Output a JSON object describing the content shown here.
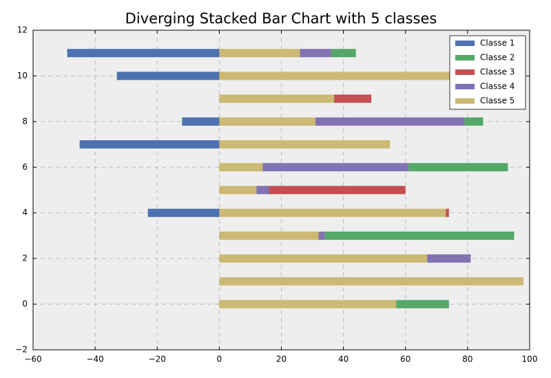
{
  "chart_data": {
    "type": "bar",
    "orientation": "horizontal",
    "stacked": true,
    "title": "Diverging Stacked Bar Chart with 5 classes",
    "categories": [
      0,
      1,
      2,
      3,
      4,
      5,
      6,
      7,
      8,
      9,
      10,
      11
    ],
    "series": [
      {
        "name": "Classe 1",
        "color": "#4c72b0",
        "values": [
          0,
          0,
          0,
          0,
          -23,
          0,
          0,
          -45,
          -12,
          0,
          -33,
          -49
        ]
      },
      {
        "name": "Classe 2",
        "color": "#55a868",
        "values": [
          17,
          0,
          0,
          61,
          0,
          0,
          32,
          0,
          6,
          0,
          0,
          8
        ]
      },
      {
        "name": "Classe 3",
        "color": "#c44e52",
        "values": [
          0,
          0,
          0,
          0,
          1,
          44,
          0,
          0,
          0,
          12,
          0,
          0
        ]
      },
      {
        "name": "Classe 4",
        "color": "#8172b2",
        "values": [
          0,
          0,
          14,
          2,
          0,
          4,
          47,
          0,
          48,
          0,
          0,
          10
        ]
      },
      {
        "name": "Classe 5",
        "color": "#ccb974",
        "values": [
          57,
          98,
          67,
          32,
          73,
          12,
          14,
          55,
          31,
          37,
          80,
          26
        ]
      }
    ],
    "xlim": [
      -60,
      100
    ],
    "xticks": [
      {
        "value": -60,
        "label": "−60"
      },
      {
        "value": -40,
        "label": "−40"
      },
      {
        "value": -20,
        "label": "−20"
      },
      0,
      20,
      40,
      60,
      80,
      100
    ],
    "ylim": [
      -2,
      12
    ],
    "yticks": [
      {
        "value": -2,
        "label": "−2"
      },
      0,
      2,
      4,
      6,
      8,
      10,
      12
    ],
    "grid": true,
    "legend": "upper right"
  }
}
